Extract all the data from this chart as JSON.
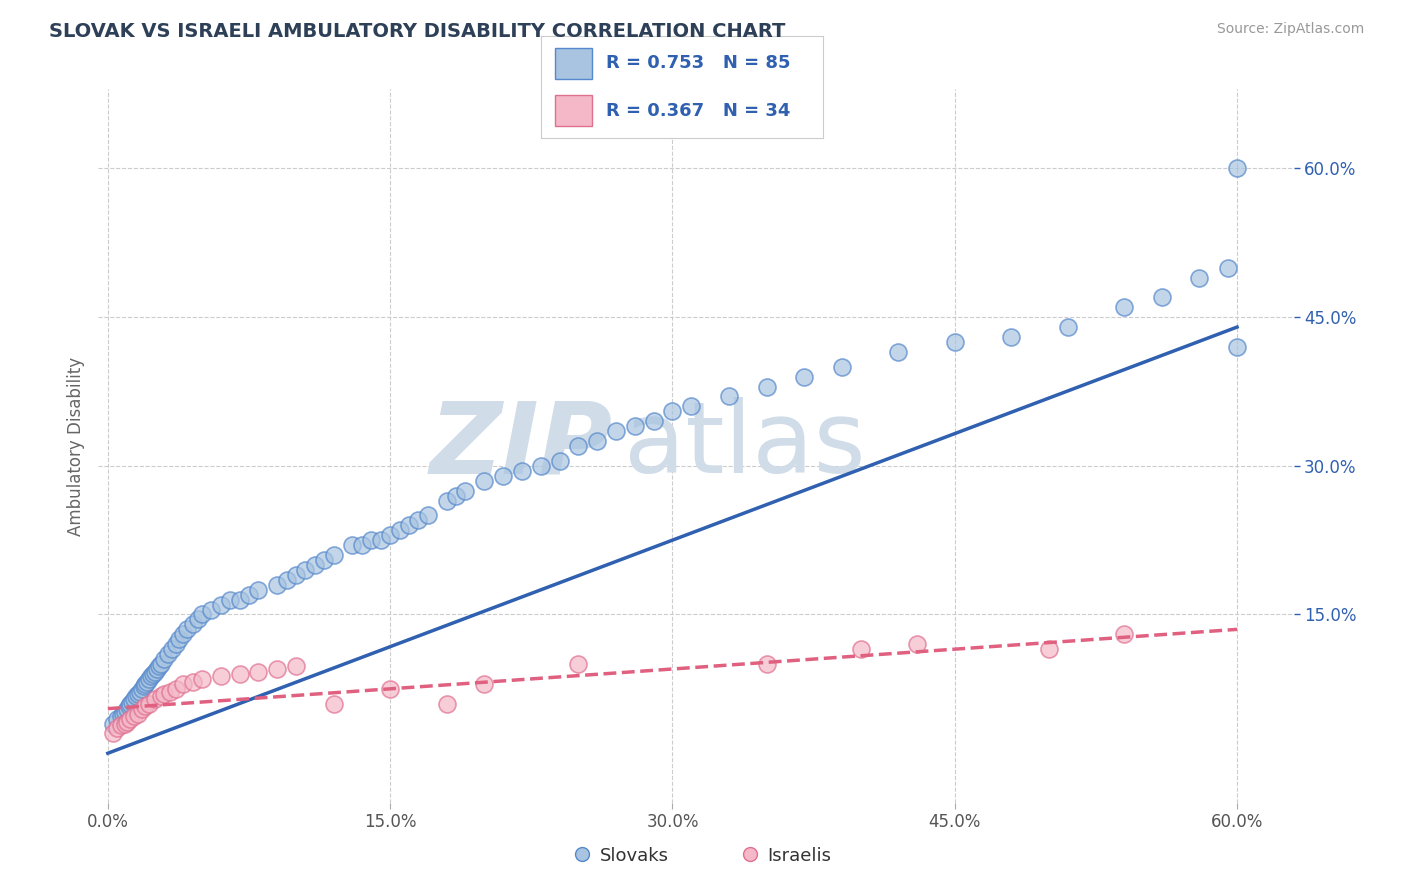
{
  "title": "SLOVAK VS ISRAELI AMBULATORY DISABILITY CORRELATION CHART",
  "source": "Source: ZipAtlas.com",
  "ylabel": "Ambulatory Disability",
  "xlim": [
    -0.005,
    0.63
  ],
  "ylim": [
    -0.04,
    0.68
  ],
  "xtick_labels": [
    "0.0%",
    "15.0%",
    "30.0%",
    "45.0%",
    "60.0%"
  ],
  "xtick_values": [
    0.0,
    0.15,
    0.3,
    0.45,
    0.6
  ],
  "right_ytick_labels": [
    "15.0%",
    "30.0%",
    "45.0%",
    "60.0%"
  ],
  "right_ytick_values": [
    0.15,
    0.3,
    0.45,
    0.6
  ],
  "slovak_color": "#a8c4e0",
  "israeli_color": "#f4b8c8",
  "slovak_edge_color": "#5588cc",
  "israeli_edge_color": "#e07090",
  "slovak_line_color": "#3060b0",
  "israeli_line_color": "#e06080",
  "slovak_R": 0.753,
  "slovak_N": 85,
  "israeli_R": 0.367,
  "israeli_N": 34,
  "legend_label_slovak": "Slovaks",
  "legend_label_israeli": "Israelis",
  "title_color": "#2e4057",
  "axis_label_color": "#666666",
  "background_color": "#ffffff",
  "grid_color": "#cccccc",
  "watermark_zip": "ZIP",
  "watermark_atlas": "atlas",
  "watermark_color": "#d0dce8",
  "slovak_line_x": [
    0.0,
    0.6
  ],
  "slovak_line_y": [
    0.01,
    0.44
  ],
  "israeli_line_x": [
    0.0,
    0.6
  ],
  "israeli_line_y": [
    0.055,
    0.135
  ],
  "slovak_scatter_x": [
    0.003,
    0.005,
    0.007,
    0.008,
    0.009,
    0.01,
    0.011,
    0.012,
    0.013,
    0.014,
    0.015,
    0.016,
    0.017,
    0.018,
    0.019,
    0.02,
    0.021,
    0.022,
    0.023,
    0.024,
    0.025,
    0.026,
    0.027,
    0.028,
    0.03,
    0.032,
    0.034,
    0.036,
    0.038,
    0.04,
    0.042,
    0.045,
    0.048,
    0.05,
    0.055,
    0.06,
    0.065,
    0.07,
    0.075,
    0.08,
    0.09,
    0.095,
    0.1,
    0.105,
    0.11,
    0.115,
    0.12,
    0.13,
    0.135,
    0.14,
    0.145,
    0.15,
    0.155,
    0.16,
    0.165,
    0.17,
    0.18,
    0.185,
    0.19,
    0.2,
    0.21,
    0.22,
    0.23,
    0.24,
    0.25,
    0.26,
    0.27,
    0.28,
    0.29,
    0.3,
    0.31,
    0.33,
    0.35,
    0.37,
    0.39,
    0.42,
    0.45,
    0.48,
    0.51,
    0.54,
    0.56,
    0.58,
    0.595,
    0.6,
    0.6
  ],
  "slovak_scatter_y": [
    0.04,
    0.045,
    0.048,
    0.05,
    0.052,
    0.055,
    0.058,
    0.06,
    0.062,
    0.065,
    0.068,
    0.07,
    0.072,
    0.075,
    0.078,
    0.08,
    0.082,
    0.085,
    0.088,
    0.09,
    0.092,
    0.095,
    0.098,
    0.1,
    0.105,
    0.11,
    0.115,
    0.12,
    0.125,
    0.13,
    0.135,
    0.14,
    0.145,
    0.15,
    0.155,
    0.16,
    0.165,
    0.165,
    0.17,
    0.175,
    0.18,
    0.185,
    0.19,
    0.195,
    0.2,
    0.205,
    0.21,
    0.22,
    0.22,
    0.225,
    0.225,
    0.23,
    0.235,
    0.24,
    0.245,
    0.25,
    0.265,
    0.27,
    0.275,
    0.285,
    0.29,
    0.295,
    0.3,
    0.305,
    0.32,
    0.325,
    0.335,
    0.34,
    0.345,
    0.355,
    0.36,
    0.37,
    0.38,
    0.39,
    0.4,
    0.415,
    0.425,
    0.43,
    0.44,
    0.46,
    0.47,
    0.49,
    0.5,
    0.6,
    0.42
  ],
  "israeli_scatter_x": [
    0.003,
    0.005,
    0.007,
    0.009,
    0.01,
    0.012,
    0.014,
    0.016,
    0.018,
    0.02,
    0.022,
    0.025,
    0.028,
    0.03,
    0.033,
    0.036,
    0.04,
    0.045,
    0.05,
    0.06,
    0.07,
    0.08,
    0.09,
    0.1,
    0.12,
    0.15,
    0.18,
    0.2,
    0.25,
    0.35,
    0.4,
    0.43,
    0.5,
    0.54
  ],
  "israeli_scatter_y": [
    0.03,
    0.035,
    0.038,
    0.04,
    0.042,
    0.045,
    0.048,
    0.05,
    0.055,
    0.058,
    0.06,
    0.065,
    0.068,
    0.07,
    0.072,
    0.075,
    0.08,
    0.082,
    0.085,
    0.088,
    0.09,
    0.092,
    0.095,
    0.098,
    0.06,
    0.075,
    0.06,
    0.08,
    0.1,
    0.1,
    0.115,
    0.12,
    0.115,
    0.13
  ]
}
